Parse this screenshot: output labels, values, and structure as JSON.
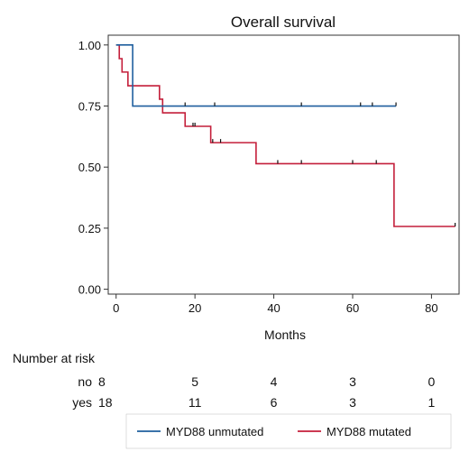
{
  "chart_data": {
    "type": "line",
    "subtype": "kaplan-meier",
    "title": "Overall survival",
    "xlabel": "Months",
    "ylabel": "",
    "xlim": [
      -2,
      87
    ],
    "ylim": [
      -0.02,
      1.04
    ],
    "x_ticks": [
      0,
      20,
      40,
      60,
      80
    ],
    "y_ticks": [
      0.0,
      0.25,
      0.5,
      0.75,
      1.0
    ],
    "x_tick_labels": [
      "0",
      "20",
      "40",
      "60",
      "80"
    ],
    "y_tick_labels": [
      "0.00",
      "0.25",
      "0.50",
      "0.75",
      "1.00"
    ],
    "grid": false,
    "legend_position": "bottom",
    "series": [
      {
        "name": "MYD88 unmutated",
        "color": "#1f5f9e",
        "steps": [
          [
            0,
            1.0
          ],
          [
            4.2,
            0.75
          ],
          [
            71,
            0.75
          ]
        ],
        "censor_times": [
          17.5,
          25,
          47,
          62,
          65,
          71
        ]
      },
      {
        "name": "MYD88 mutated",
        "color": "#c41e3a",
        "steps": [
          [
            0,
            1.0
          ],
          [
            0.8,
            0.944
          ],
          [
            1.5,
            0.889
          ],
          [
            3.0,
            0.833
          ],
          [
            11.0,
            0.778
          ],
          [
            11.8,
            0.722
          ],
          [
            17.5,
            0.667
          ],
          [
            24.0,
            0.6
          ],
          [
            35.5,
            0.514
          ],
          [
            70.5,
            0.257
          ],
          [
            86,
            0.257
          ]
        ],
        "censor_times": [
          19.5,
          20,
          24.5,
          26.5,
          41,
          47,
          60,
          66,
          86
        ]
      }
    ],
    "risk_table": {
      "title": "Number at risk",
      "times": [
        0,
        20,
        40,
        60,
        80
      ],
      "rows": [
        {
          "label": "no",
          "counts": [
            "8",
            "5",
            "4",
            "3",
            "0"
          ]
        },
        {
          "label": "yes",
          "counts": [
            "18",
            "11",
            "6",
            "3",
            "1"
          ]
        }
      ]
    }
  }
}
